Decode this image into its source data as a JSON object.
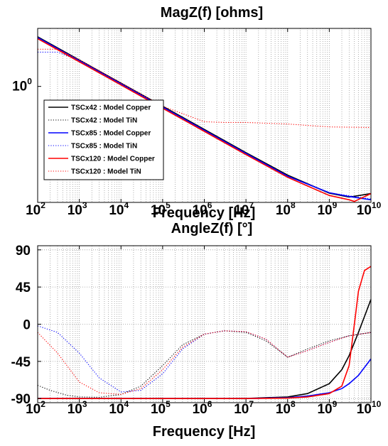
{
  "chart_data": [
    {
      "type": "line",
      "title": "MagZ(f) [ohms]",
      "xlabel": "Frequency [Hz]",
      "ylabel": "",
      "xscale": "log",
      "yscale": "log",
      "xlim": [
        100,
        10000000000
      ],
      "x_ticks": [
        {
          "base": "10",
          "exp": "2"
        },
        {
          "base": "10",
          "exp": "3"
        },
        {
          "base": "10",
          "exp": "4"
        },
        {
          "base": "10",
          "exp": "5"
        },
        {
          "base": "10",
          "exp": "6"
        },
        {
          "base": "10",
          "exp": "7"
        },
        {
          "base": "10",
          "exp": "8"
        },
        {
          "base": "10",
          "exp": "9"
        },
        {
          "base": "10",
          "exp": "10"
        }
      ],
      "y_ticks": [
        {
          "base": "10",
          "exp": "0"
        }
      ],
      "grid": "x-minor-dotted",
      "legend_position": "lower-left",
      "series": [
        {
          "name": "TSCx42 : Model Copper",
          "color": "#000000",
          "style": "solid",
          "x": [
            100,
            1000,
            10000,
            100000,
            1000000,
            10000000,
            100000000,
            1000000000,
            3000000000,
            10000000000
          ],
          "y": [
            138,
            13.8,
            1.38,
            0.14,
            0.014,
            0.0014,
            0.00015,
            2.5e-05,
            1.7e-05,
            2.4e-05
          ]
        },
        {
          "name": "TSCx42 : Model TiN",
          "color": "#000000",
          "style": "dotted",
          "x": [
            100,
            1000,
            10000,
            100000,
            1000000,
            10000000,
            100000000,
            1000000000,
            3000000000,
            10000000000
          ],
          "y": [
            136,
            13.6,
            1.36,
            0.136,
            0.0136,
            0.00137,
            0.00015,
            2.5e-05,
            1.7e-05,
            2.3e-05
          ]
        },
        {
          "name": "TSCx85 : Model Copper",
          "color": "#0000ff",
          "style": "solid",
          "x": [
            100,
            1000,
            10000,
            100000,
            1000000,
            10000000,
            100000000,
            1000000000,
            3000000000,
            10000000000
          ],
          "y": [
            128,
            12.8,
            1.28,
            0.128,
            0.0128,
            0.00129,
            0.000135,
            2.6e-05,
            1.8e-05,
            1.3e-05
          ]
        },
        {
          "name": "TSCx85 : Model TiN",
          "color": "#0000ff",
          "style": "dotted",
          "x": [
            100,
            300,
            1000,
            10000,
            100000,
            1000000,
            10000000,
            100000000,
            1000000000,
            10000000000
          ],
          "y": [
            30,
            30,
            13,
            1.3,
            0.13,
            0.013,
            0.0013,
            0.00014,
            2.6e-05,
            1.4e-05
          ]
        },
        {
          "name": "TSCx120 : Model Copper",
          "color": "#ff0000",
          "style": "solid",
          "x": [
            100,
            1000,
            10000,
            100000,
            1000000,
            10000000,
            100000000,
            1000000000,
            3000000000,
            4000000000,
            10000000000
          ],
          "y": [
            115,
            11.5,
            1.15,
            0.115,
            0.0115,
            0.00115,
            0.00012,
            2e-05,
            1.3e-05,
            1.1e-05,
            2.4e-05
          ]
        },
        {
          "name": "TSCx120 : Model TiN",
          "color": "#ff0000",
          "style": "dotted",
          "x": [
            100,
            300,
            1000,
            10000,
            100000,
            1000000,
            3000000,
            10000000,
            100000000,
            1000000000,
            10000000000
          ],
          "y": [
            40,
            40,
            14,
            1.4,
            0.14,
            0.03,
            0.028,
            0.028,
            0.024,
            0.018,
            0.017
          ]
        }
      ]
    },
    {
      "type": "line",
      "title": "AngleZ(f) [°]",
      "xlabel": "Frequency [Hz]",
      "ylabel": "",
      "xscale": "log",
      "xlim": [
        100,
        10000000000
      ],
      "ylim": [
        -95,
        95
      ],
      "x_ticks": [
        {
          "base": "10",
          "exp": "2"
        },
        {
          "base": "10",
          "exp": "3"
        },
        {
          "base": "10",
          "exp": "4"
        },
        {
          "base": "10",
          "exp": "5"
        },
        {
          "base": "10",
          "exp": "6"
        },
        {
          "base": "10",
          "exp": "7"
        },
        {
          "base": "10",
          "exp": "8"
        },
        {
          "base": "10",
          "exp": "9"
        },
        {
          "base": "10",
          "exp": "10"
        }
      ],
      "y_ticks": [
        "90",
        "45",
        "0",
        "-45",
        "-90"
      ],
      "y_tick_values": [
        90,
        45,
        0,
        -45,
        -90
      ],
      "grid": "x-minor-dotted, y-major-dotted",
      "series": [
        {
          "name": "TSCx42 : Model Copper",
          "color": "#000000",
          "style": "solid",
          "x": [
            100,
            1000,
            10000,
            100000,
            1000000,
            10000000,
            100000000,
            300000000,
            1000000000,
            2000000000,
            3000000000,
            5000000000,
            10000000000
          ],
          "y": [
            -89.9,
            -89.9,
            -89.9,
            -89.9,
            -89.9,
            -89.8,
            -88,
            -84,
            -72,
            -55,
            -38,
            -10,
            30
          ]
        },
        {
          "name": "TSCx42 : Model TiN",
          "color": "#000000",
          "style": "dotted",
          "x": [
            100,
            200,
            500,
            1000,
            3000,
            10000,
            30000,
            100000,
            300000,
            1000000,
            3000000,
            10000000,
            30000000,
            100000000,
            300000000,
            1000000000,
            3000000000,
            10000000000
          ],
          "y": [
            -74,
            -80,
            -86,
            -88,
            -88.5,
            -85,
            -75,
            -50,
            -25,
            -12,
            -8,
            -10,
            -20,
            -40,
            -30,
            -20,
            -14,
            -10
          ]
        },
        {
          "name": "TSCx85 : Model Copper",
          "color": "#0000ff",
          "style": "solid",
          "x": [
            100,
            1000,
            10000,
            100000,
            1000000,
            10000000,
            100000000,
            300000000,
            1000000000,
            2000000000,
            3000000000,
            5000000000,
            10000000000
          ],
          "y": [
            -90,
            -90,
            -90,
            -90,
            -90,
            -90,
            -89,
            -87,
            -83,
            -78,
            -72,
            -62,
            -42
          ]
        },
        {
          "name": "TSCx85 : Model TiN",
          "color": "#0000ff",
          "style": "dotted",
          "x": [
            100,
            300,
            1000,
            3000,
            10000,
            30000,
            100000,
            300000,
            1000000,
            3000000,
            10000000,
            30000000,
            100000000,
            300000000,
            1000000000,
            3000000000,
            10000000000
          ],
          "y": [
            -2,
            -10,
            -35,
            -65,
            -82,
            -80,
            -60,
            -30,
            -12,
            -8,
            -9,
            -18,
            -40,
            -32,
            -22,
            -14,
            -10
          ]
        },
        {
          "name": "TSCx120 : Model Copper",
          "color": "#ff0000",
          "style": "solid",
          "x": [
            100,
            1000,
            10000,
            100000,
            1000000,
            10000000,
            100000000,
            300000000,
            1000000000,
            2000000000,
            3000000000,
            4000000000,
            5000000000,
            7000000000,
            10000000000
          ],
          "y": [
            -90,
            -90,
            -90,
            -90,
            -90,
            -90,
            -89.5,
            -88,
            -84,
            -75,
            -50,
            0,
            40,
            65,
            70
          ]
        },
        {
          "name": "TSCx120 : Model TiN",
          "color": "#ff0000",
          "style": "dotted",
          "x": [
            100,
            300,
            1000,
            3000,
            10000,
            30000,
            100000,
            300000,
            1000000,
            3000000,
            10000000,
            30000000,
            100000000,
            300000000,
            1000000000,
            3000000000,
            10000000000
          ],
          "y": [
            -10,
            -35,
            -70,
            -83,
            -85,
            -78,
            -55,
            -28,
            -12,
            -8,
            -9,
            -18,
            -40,
            -32,
            -22,
            -14,
            -10
          ]
        }
      ]
    }
  ]
}
